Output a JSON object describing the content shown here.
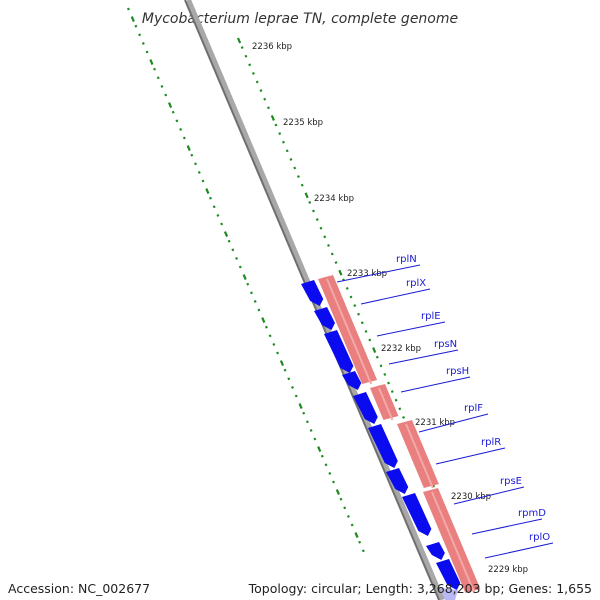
{
  "title": "Mycobacterium leprae TN, complete genome",
  "accession": "Accession: NC_002677",
  "summary": "Topology: circular; Length: 3,268,203 bp; Genes: 1,655",
  "colors": {
    "backbone": "#8c8c8c",
    "ticks": "#1e8a1e",
    "forward_genes": "#0b0bf0",
    "reverse_genes": "#e97f7f",
    "labels": "#1a1ad6"
  },
  "kbp_labels": [
    "2236 kbp",
    "2235 kbp",
    "2234 kbp",
    "2233 kbp",
    "2232 kbp",
    "2231 kbp",
    "2230 kbp",
    "2229 kbp"
  ],
  "gene_labels": [
    "rplN",
    "rplX",
    "rplE",
    "rpsN",
    "rpsH",
    "rplF",
    "rplR",
    "rpsE",
    "rpmD",
    "rplO"
  ]
}
